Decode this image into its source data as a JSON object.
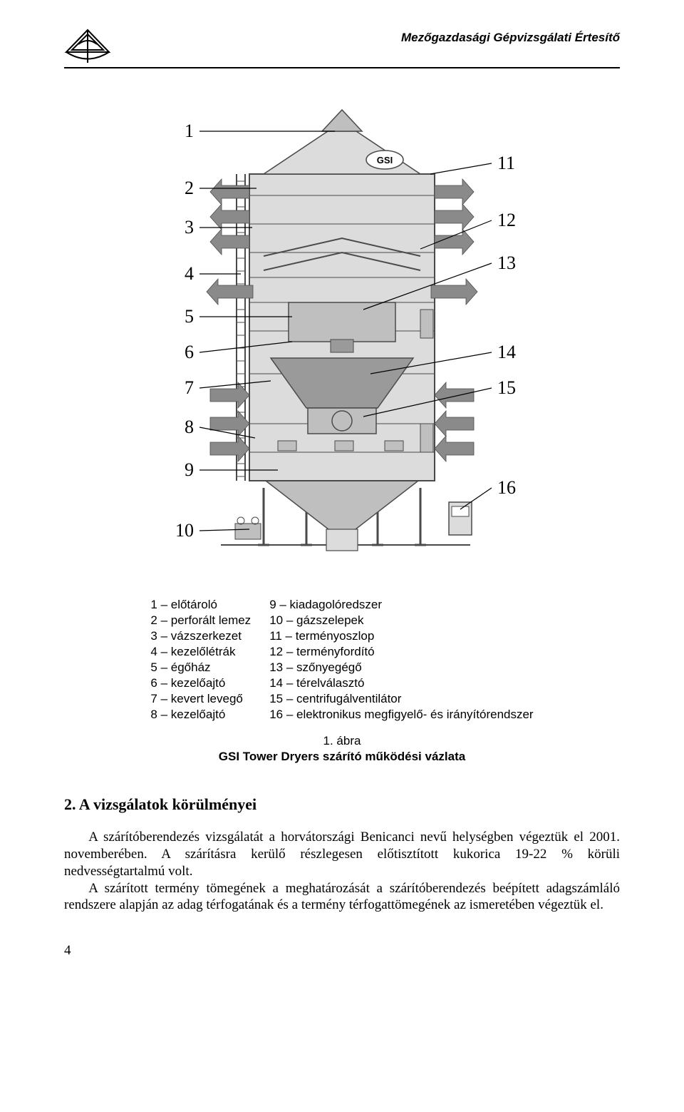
{
  "header": {
    "title": "Mezőgazdasági Gépvizsgálati Értesítő"
  },
  "figure": {
    "labels_left": {
      "1": "1",
      "2": "2",
      "3": "3",
      "4": "4",
      "5": "5",
      "6": "6",
      "7": "7",
      "8": "8",
      "9": "9",
      "10": "10"
    },
    "labels_right": {
      "11": "11",
      "12": "12",
      "13": "13",
      "14": "14",
      "15": "15",
      "16": "16"
    },
    "brand_label": "GSI",
    "colors": {
      "stroke": "#4a4a4a",
      "fill_light": "#dcdcdc",
      "fill_mid": "#bfbfbf",
      "fill_dark": "#9a9a9a",
      "arrow": "#8a8a8a",
      "background": "#ffffff",
      "text": "#000000"
    },
    "label_fontsize": 26,
    "caption_line1": "1. ábra",
    "caption_line2": "GSI Tower Dryers szárító működési vázlata"
  },
  "legend": {
    "left": [
      "1 – előtároló",
      "2 – perforált lemez",
      "3 – vázszerkezet",
      "4 – kezelőlétrák",
      "5 – égőház",
      "6 – kezelőajtó",
      "7 – kevert levegő",
      "8 – kezelőajtó"
    ],
    "right": [
      "9 – kiadagolóredszer",
      "10 – gázszelepek",
      "11 – terményoszlop",
      "12 – terményfordító",
      "13 – szőnyegégő",
      "14 – térelválasztó",
      "15 – centrifugálventilátor",
      "16 – elektronikus megfigyelő- és irányítórendszer"
    ]
  },
  "section": {
    "heading": "2. A vizsgálatok körülményei",
    "para1": "A szárítóberendezés vizsgálatát a horvátországi Benicanci nevű helységben végeztük el 2001. novemberében. A szárításra kerülő részlegesen előtisztított kukorica 19-22 % körüli nedvességtartalmú volt.",
    "para2": "A szárított termény tömegének a meghatározását a szárítóberendezés beépített adagszámláló rendszere alapján az adag térfogatának és a termény térfogattömegének az ismeretében végeztük el."
  },
  "page_number": "4"
}
